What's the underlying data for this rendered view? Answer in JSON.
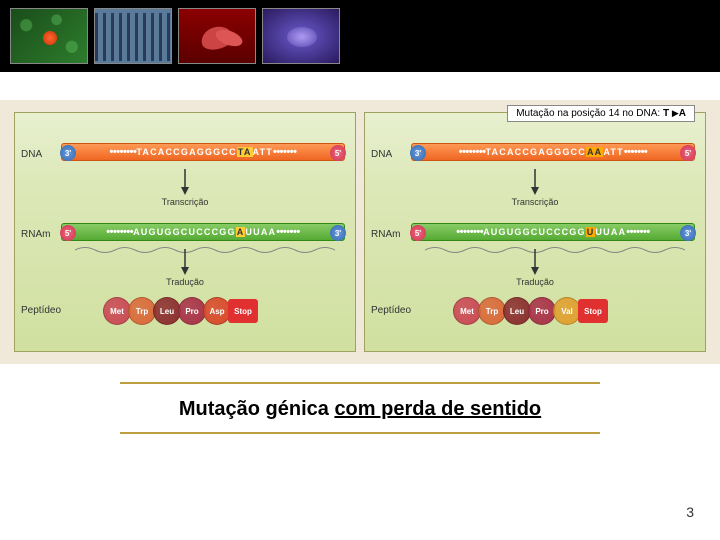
{
  "header": {
    "thumbnails": [
      "cells-green",
      "karyotype",
      "sickle-cells",
      "chromosome-violet"
    ]
  },
  "diagram": {
    "mutation_label_prefix": "Mutação na posição 14 no DNA: ",
    "mutation_from": "T",
    "mutation_to": "A",
    "row_labels": {
      "dna": "DNA",
      "rna": "RNAm",
      "pep": "Peptídeo"
    },
    "process_labels": {
      "transcription": "Transcrição",
      "translation": "Tradução"
    },
    "end_caps": {
      "three": "3'",
      "five": "5'"
    },
    "left": {
      "dna_seq_pre": "TACACCGAGGGCC",
      "dna_hl": "TA",
      "dna_seq_post": "ATT",
      "rna_seq_pre": "AUGUGGCUCCCGG",
      "rna_hl": "A",
      "rna_seq_post": "UUAA",
      "peptide": [
        {
          "label": "Met",
          "color": "#c94a55"
        },
        {
          "label": "Trp",
          "color": "#d96a3a"
        },
        {
          "label": "Leu",
          "color": "#8b2f2f"
        },
        {
          "label": "Pro",
          "color": "#a83248"
        },
        {
          "label": "Asp",
          "color": "#d84a2a"
        }
      ],
      "stop": {
        "label": "Stop",
        "color": "#e03030"
      }
    },
    "right": {
      "dna_seq_pre": "TACACCGAGGGCC",
      "dna_hl": "AA",
      "dna_seq_post": "ATT",
      "rna_seq_pre": "AUGUGGCUCCCGG",
      "rna_hl": "U",
      "rna_seq_post": "UUAA",
      "peptide": [
        {
          "label": "Met",
          "color": "#c94a55"
        },
        {
          "label": "Trp",
          "color": "#d96a3a"
        },
        {
          "label": "Leu",
          "color": "#8b2f2f"
        },
        {
          "label": "Pro",
          "color": "#a83248"
        },
        {
          "label": "Val",
          "color": "#e0a030"
        }
      ],
      "stop": {
        "label": "Stop",
        "color": "#e03030"
      }
    },
    "colors": {
      "dna_strand": "#ee7733",
      "rna_strand": "#66bb44",
      "cap_blue": "#4477bb",
      "cap_red": "#dd5566",
      "panel_bg_top": "#e8f0d0",
      "panel_bg_bot": "#d0e0a0",
      "accent_line": "#bfa040"
    }
  },
  "caption": {
    "plain": "Mutação génica ",
    "underlined": "com perda de sentido"
  },
  "page_number": "3"
}
